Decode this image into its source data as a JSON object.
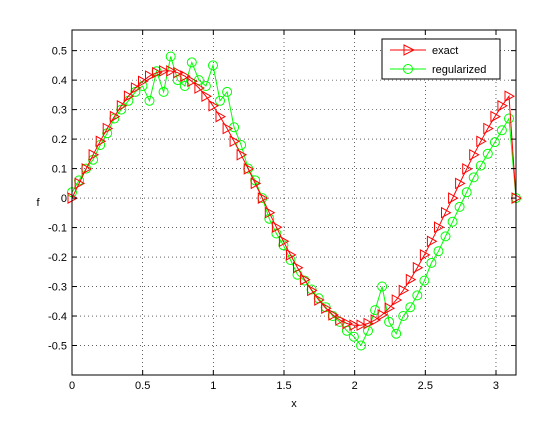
{
  "chart_data": {
    "type": "line",
    "title": "",
    "xlabel": "x",
    "ylabel": "f",
    "xlim": [
      0,
      3.1416
    ],
    "ylim": [
      -0.6,
      0.57
    ],
    "xticks": [
      0,
      0.5,
      1,
      1.5,
      2,
      2.5,
      3
    ],
    "yticks": [
      -0.5,
      -0.4,
      -0.3,
      -0.2,
      -0.1,
      0,
      0.1,
      0.2,
      0.3,
      0.4,
      0.5
    ],
    "xtick_labels": [
      "0",
      "0.5",
      "1",
      "1.5",
      "2",
      "2.5",
      "3"
    ],
    "ytick_labels": [
      "-0.5",
      "-0.4",
      "-0.3",
      "-0.2",
      "-0.1",
      "0",
      "0.1",
      "0.2",
      "0.3",
      "0.4",
      "0.5"
    ],
    "grid": true,
    "legend_position": "top-right",
    "series": [
      {
        "name": "exact",
        "color": "#ff0000",
        "marker": "triangle-right",
        "x": [
          0,
          0.0499,
          0.0997,
          0.1496,
          0.1995,
          0.2493,
          0.2992,
          0.3491,
          0.399,
          0.4488,
          0.4987,
          0.5486,
          0.5984,
          0.6483,
          0.6982,
          0.748,
          0.7979,
          0.8478,
          0.8976,
          0.9475,
          0.9974,
          1.0472,
          1.0971,
          1.147,
          1.1968,
          1.2467,
          1.2966,
          1.3464,
          1.3963,
          1.4462,
          1.496,
          1.5459,
          1.5958,
          1.6456,
          1.6955,
          1.7454,
          1.7952,
          1.8451,
          1.895,
          1.9448,
          1.9947,
          2.0446,
          2.0944,
          2.1443,
          2.1942,
          2.244,
          2.2939,
          2.3438,
          2.3936,
          2.4435,
          2.4934,
          2.5432,
          2.5931,
          2.643,
          2.6928,
          2.7427,
          2.7926,
          2.8424,
          2.8923,
          2.9422,
          2.992,
          3.0419,
          3.0918,
          3.1416
        ],
        "y": [
          0,
          0.0497,
          0.0988,
          0.1467,
          0.1927,
          0.2361,
          0.2764,
          0.313,
          0.3455,
          0.3733,
          0.3961,
          0.4135,
          0.4253,
          0.4312,
          0.4312,
          0.4253,
          0.4135,
          0.3961,
          0.3733,
          0.3455,
          0.313,
          0.2764,
          0.2361,
          0.1927,
          0.1467,
          0.0988,
          0.0497,
          0,
          -0.0497,
          -0.0988,
          -0.1467,
          -0.1927,
          -0.2361,
          -0.2764,
          -0.313,
          -0.3455,
          -0.3733,
          -0.3961,
          -0.4135,
          -0.4253,
          -0.4312,
          -0.4312,
          -0.4253,
          -0.4135,
          -0.3961,
          -0.3733,
          -0.3455,
          -0.313,
          -0.2764,
          -0.2361,
          -0.1927,
          -0.1467,
          -0.0988,
          -0.0497,
          0,
          0.0497,
          0.0988,
          0.1467,
          0.1927,
          0.2361,
          0.2764,
          0.313,
          0.3455,
          0
        ]
      },
      {
        "name": "regularized",
        "color": "#00ff00",
        "marker": "circle",
        "x": [
          0,
          0.0499,
          0.0997,
          0.1496,
          0.1995,
          0.2493,
          0.2992,
          0.3491,
          0.399,
          0.4488,
          0.4987,
          0.5486,
          0.5984,
          0.6483,
          0.6982,
          0.748,
          0.7979,
          0.8478,
          0.8976,
          0.9475,
          0.9974,
          1.0472,
          1.0971,
          1.147,
          1.1968,
          1.2467,
          1.2966,
          1.3464,
          1.3963,
          1.4462,
          1.496,
          1.5459,
          1.5958,
          1.6456,
          1.6955,
          1.7454,
          1.7952,
          1.8451,
          1.895,
          1.9448,
          1.9947,
          2.0446,
          2.0944,
          2.1443,
          2.1942,
          2.244,
          2.2939,
          2.3438,
          2.3936,
          2.4435,
          2.4934,
          2.5432,
          2.5931,
          2.643,
          2.6928,
          2.7427,
          2.7926,
          2.8424,
          2.8923,
          2.9422,
          2.992,
          3.0419,
          3.0918,
          3.1416
        ],
        "y": [
          0.02,
          0.06,
          0.1,
          0.13,
          0.18,
          0.22,
          0.27,
          0.3,
          0.33,
          0.36,
          0.38,
          0.33,
          0.43,
          0.36,
          0.48,
          0.4,
          0.38,
          0.46,
          0.4,
          0.38,
          0.45,
          0.33,
          0.36,
          0.24,
          0.18,
          0.1,
          0.06,
          0.0,
          -0.07,
          -0.12,
          -0.16,
          -0.21,
          -0.26,
          -0.28,
          -0.31,
          -0.34,
          -0.37,
          -0.4,
          -0.42,
          -0.45,
          -0.47,
          -0.5,
          -0.45,
          -0.38,
          -0.3,
          -0.42,
          -0.46,
          -0.4,
          -0.37,
          -0.33,
          -0.28,
          -0.22,
          -0.18,
          -0.13,
          -0.08,
          -0.03,
          0.02,
          0.07,
          0.11,
          0.15,
          0.19,
          0.23,
          0.27,
          0.0
        ]
      }
    ]
  }
}
